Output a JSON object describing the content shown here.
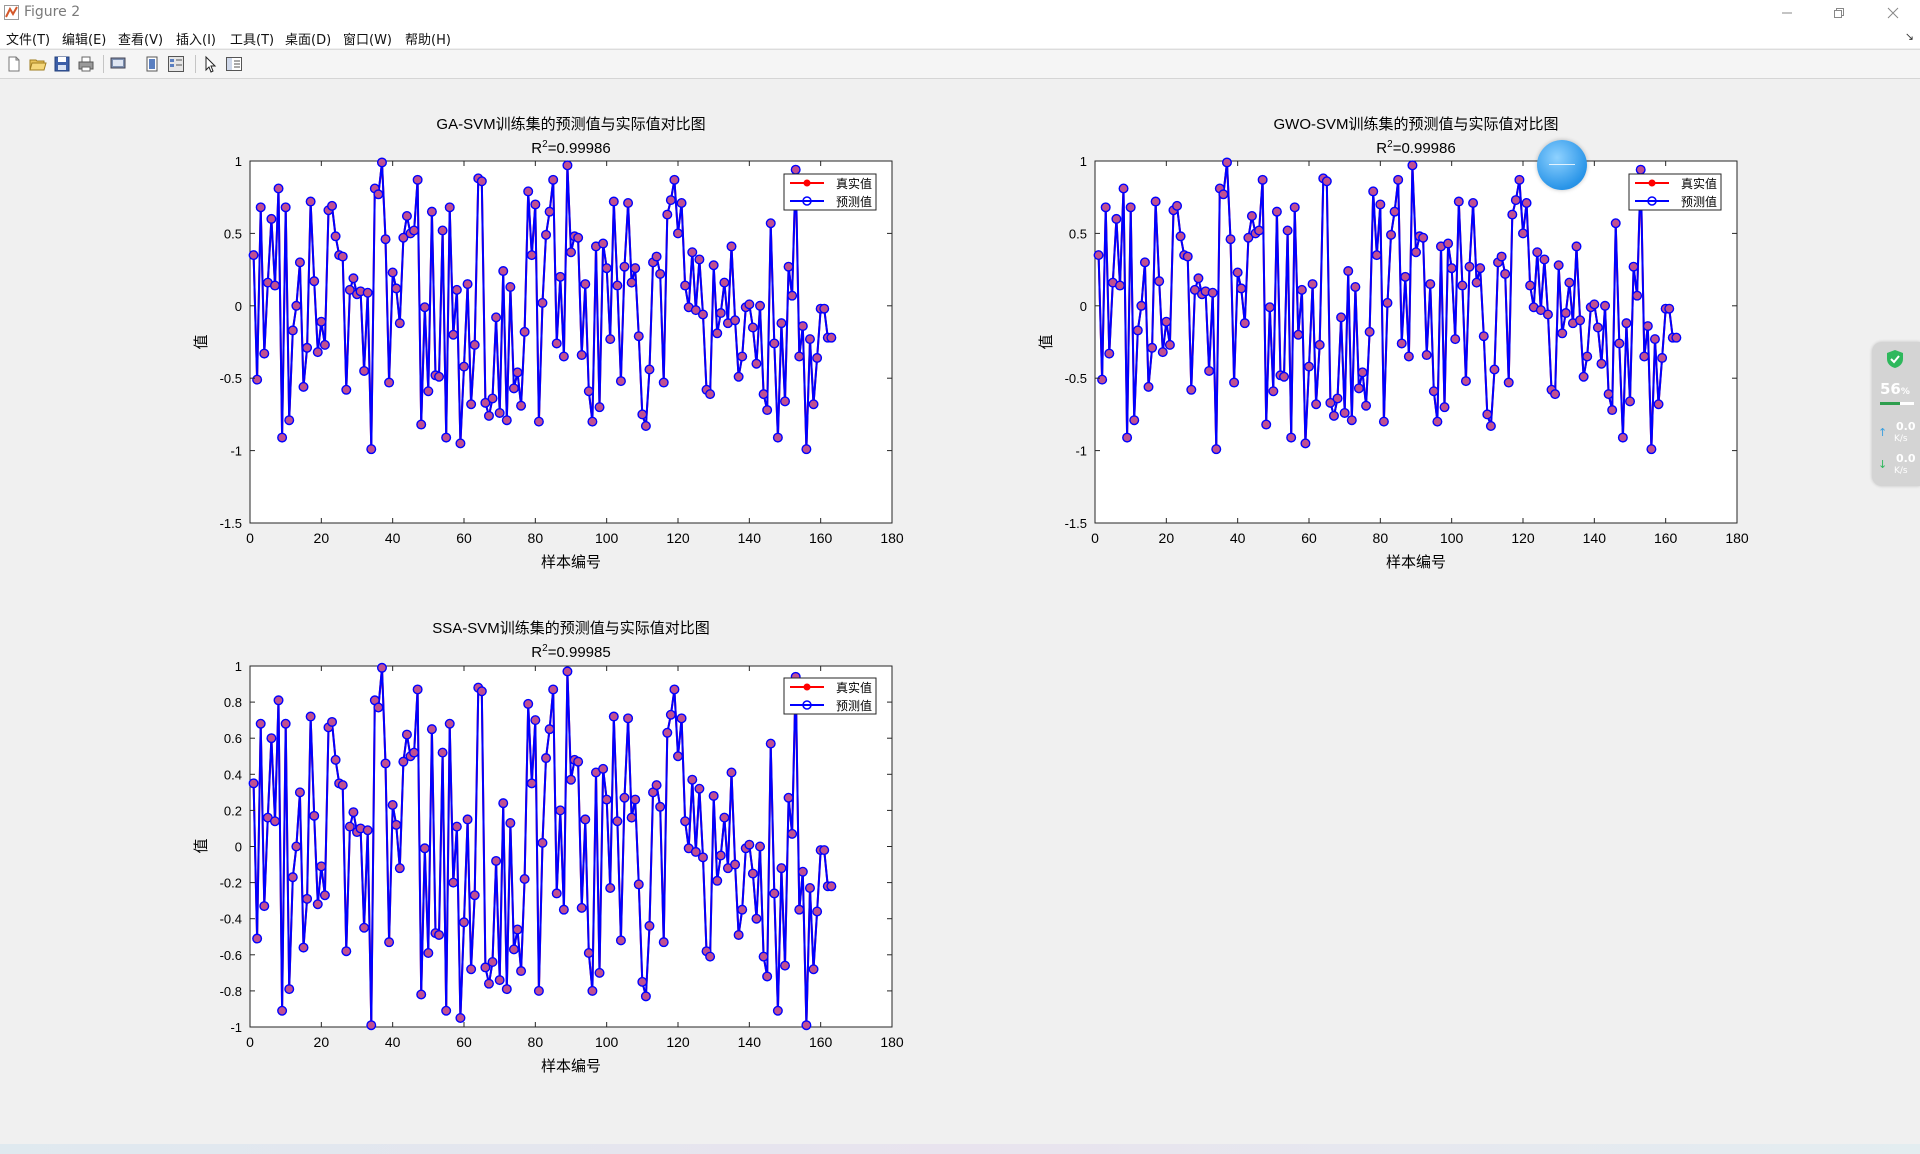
{
  "window": {
    "title": "Figure 2"
  },
  "menu": [
    {
      "label": "文件(T)"
    },
    {
      "label": "编辑(E)"
    },
    {
      "label": "查看(V)"
    },
    {
      "label": "插入(I)"
    },
    {
      "label": "工具(T)"
    },
    {
      "label": "桌面(D)"
    },
    {
      "label": "窗口(W)"
    },
    {
      "label": "帮助(H)"
    }
  ],
  "toolbar": {
    "buttons": [
      "new-figure-icon",
      "open-file-icon",
      "save-icon",
      "print-icon",
      "print-preview-icon",
      "dock-icon",
      "property-editor-icon",
      "pointer-icon",
      "plot-browser-icon"
    ]
  },
  "monitor": {
    "cpu_percent": "56",
    "cpu_unit": "%",
    "upload": "0.0",
    "upload_unit": "K/s",
    "download": "0.0",
    "download_unit": "K/s"
  },
  "colors": {
    "true_series": "#ff0000",
    "pred_series": "#0000ff",
    "marker_fill": "#c05090"
  },
  "chart_data": [
    {
      "type": "line",
      "title": "GA-SVM训练集的预测值与实际值对比图",
      "r2_prefix": "R",
      "r2_sup": "2",
      "r2_value": "=0.99986",
      "xlabel": "样本编号",
      "ylabel": "值",
      "xlim": [
        0,
        180
      ],
      "ylim": [
        -1.5,
        1
      ],
      "xticks": [
        0,
        20,
        40,
        60,
        80,
        100,
        120,
        140,
        160,
        180
      ],
      "yticks": [
        -1.5,
        -1,
        -0.5,
        0,
        0.5,
        1
      ],
      "legend": [
        "真实值",
        "预测值"
      ],
      "legend_position": "top-right",
      "series": [
        {
          "name": "真实值",
          "marker": "filled-star"
        },
        {
          "name": "预测值",
          "marker": "circle"
        }
      ]
    },
    {
      "type": "line",
      "title": "GWO-SVM训练集的预测值与实际值对比图",
      "r2_prefix": "R",
      "r2_sup": "2",
      "r2_value": "=0.99986",
      "xlabel": "样本编号",
      "ylabel": "值",
      "xlim": [
        0,
        180
      ],
      "ylim": [
        -1.5,
        1
      ],
      "xticks": [
        0,
        20,
        40,
        60,
        80,
        100,
        120,
        140,
        160,
        180
      ],
      "yticks": [
        -1.5,
        -1,
        -0.5,
        0,
        0.5,
        1
      ],
      "legend": [
        "真实值",
        "预测值"
      ],
      "legend_position": "top-right",
      "series": [
        {
          "name": "真实值",
          "marker": "filled-star"
        },
        {
          "name": "预测值",
          "marker": "circle"
        }
      ]
    },
    {
      "type": "line",
      "title": "SSA-SVM训练集的预测值与实际值对比图",
      "r2_prefix": "R",
      "r2_sup": "2",
      "r2_value": "=0.99985",
      "xlabel": "样本编号",
      "ylabel": "值",
      "xlim": [
        0,
        180
      ],
      "ylim": [
        -1,
        1
      ],
      "xticks": [
        0,
        20,
        40,
        60,
        80,
        100,
        120,
        140,
        160,
        180
      ],
      "yticks": [
        -1,
        -0.8,
        -0.6,
        -0.4,
        -0.2,
        0,
        0.2,
        0.4,
        0.6,
        0.8,
        1
      ],
      "legend": [
        "真实值",
        "预测值"
      ],
      "legend_position": "top-right",
      "series": [
        {
          "name": "真实值",
          "marker": "filled-star"
        },
        {
          "name": "预测值",
          "marker": "circle"
        }
      ]
    }
  ],
  "shared_series_y": [
    0.35,
    -0.51,
    0.68,
    -0.33,
    0.16,
    0.6,
    0.14,
    0.81,
    -0.91,
    0.68,
    -0.79,
    -0.17,
    0.0,
    0.3,
    -0.56,
    -0.29,
    0.72,
    0.17,
    -0.32,
    -0.11,
    -0.27,
    0.66,
    0.69,
    0.48,
    0.35,
    0.34,
    -0.58,
    0.11,
    0.19,
    0.08,
    0.1,
    -0.45,
    0.09,
    -0.99,
    0.81,
    0.77,
    0.99,
    0.46,
    -0.53,
    0.23,
    0.12,
    -0.12,
    0.47,
    0.62,
    0.5,
    0.52,
    0.87,
    -0.82,
    -0.01,
    -0.59,
    0.65,
    -0.48,
    -0.49,
    0.52,
    -0.91,
    0.68,
    -0.2,
    0.11,
    -0.95,
    -0.42,
    0.15,
    -0.68,
    -0.27,
    0.88,
    0.86,
    -0.67,
    -0.76,
    -0.64,
    -0.08,
    -0.74,
    0.24,
    -0.79,
    0.13,
    -0.57,
    -0.46,
    -0.69,
    -0.18,
    0.79,
    0.35,
    0.7,
    -0.8,
    0.02,
    0.49,
    0.65,
    0.87,
    -0.26,
    0.2,
    -0.35,
    0.97,
    0.37,
    0.48,
    0.47,
    -0.34,
    0.15,
    -0.59,
    -0.8,
    0.41,
    -0.7,
    0.43,
    0.26,
    -0.23,
    0.72,
    0.14,
    -0.52,
    0.27,
    0.71,
    0.16,
    0.26,
    -0.21,
    -0.75,
    -0.83,
    -0.44,
    0.3,
    0.34,
    0.22,
    -0.53,
    0.63,
    0.73,
    0.87,
    0.5,
    0.71,
    0.14,
    -0.01,
    0.37,
    -0.03,
    0.32,
    -0.06,
    -0.58,
    -0.61,
    0.28,
    -0.19,
    -0.05,
    0.16,
    -0.12,
    0.41,
    -0.1,
    -0.49,
    -0.35,
    -0.01,
    0.01,
    -0.15,
    -0.4,
    0.0,
    -0.61,
    -0.72,
    0.57,
    -0.26,
    -0.91,
    -0.12,
    -0.66,
    0.27,
    0.07,
    0.94,
    -0.35,
    -0.14,
    -0.99,
    -0.23,
    -0.68,
    -0.36,
    -0.02,
    -0.02,
    -0.22,
    -0.22
  ]
}
